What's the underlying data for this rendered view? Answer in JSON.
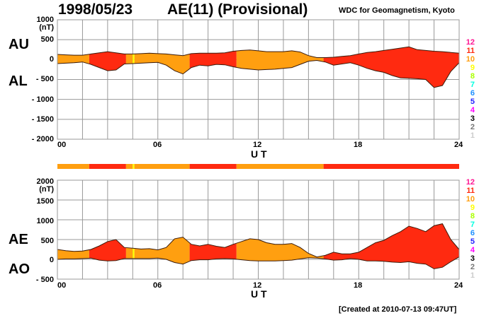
{
  "header": {
    "date": "1998/05/23",
    "title": "AE(11) (Provisional)",
    "source": "WDC for Geomagnetism, Kyoto"
  },
  "footer": {
    "created": "[Created at 2010-07-13 09:47UT]"
  },
  "colors": {
    "level10": "#ff9f10",
    "level11": "#ff2a10",
    "level9": "#ffff00",
    "outline": "#000000",
    "grid": "#999999"
  },
  "legend": {
    "items": [
      {
        "label": "12",
        "color": "#ff1493"
      },
      {
        "label": "11",
        "color": "#ff2a10"
      },
      {
        "label": "10",
        "color": "#ff9f10"
      },
      {
        "label": "9",
        "color": "#ffff00"
      },
      {
        "label": "8",
        "color": "#aaff00"
      },
      {
        "label": "7",
        "color": "#00ffe0"
      },
      {
        "label": "6",
        "color": "#1e90ff"
      },
      {
        "label": "5",
        "color": "#2020ff"
      },
      {
        "label": "4",
        "color": "#ff00ff"
      },
      {
        "label": "3",
        "color": "#000000"
      },
      {
        "label": "2",
        "color": "#777777"
      },
      {
        "label": "1",
        "color": "#cccccc"
      }
    ]
  },
  "chart_data": [
    {
      "type": "area",
      "title": "AU / AL",
      "upper_label": "AU",
      "lower_label": "AL",
      "unit": "(nT)",
      "xlabel": "U T",
      "xlim": [
        0,
        24
      ],
      "ylim": [
        -2000,
        1000
      ],
      "x_ticks": [
        "00",
        "06",
        "12",
        "18",
        "24"
      ],
      "y_ticks": [
        "1000",
        "500",
        "0",
        "- 500",
        "- 1000",
        "- 1500",
        "- 2000"
      ],
      "grid": true,
      "x": [
        0,
        0.5,
        1,
        1.5,
        2,
        2.5,
        3,
        3.5,
        4,
        4.5,
        5,
        5.5,
        6,
        6.5,
        7,
        7.5,
        8,
        8.5,
        9,
        9.5,
        10,
        10.5,
        11,
        11.5,
        12,
        12.5,
        13,
        13.5,
        14,
        14.5,
        15,
        15.5,
        16,
        16.5,
        17,
        17.5,
        18,
        18.5,
        19,
        19.5,
        20,
        20.5,
        21,
        21.5,
        22,
        22.5,
        23,
        23.5,
        24
      ],
      "series": [
        {
          "name": "AU",
          "values": [
            130,
            120,
            110,
            110,
            140,
            170,
            200,
            170,
            140,
            140,
            150,
            160,
            150,
            140,
            120,
            100,
            150,
            160,
            160,
            160,
            170,
            210,
            230,
            240,
            220,
            200,
            200,
            200,
            220,
            190,
            100,
            50,
            50,
            60,
            80,
            100,
            140,
            180,
            200,
            230,
            260,
            290,
            320,
            250,
            230,
            210,
            200,
            180,
            160
          ]
        },
        {
          "name": "AL",
          "values": [
            -100,
            -90,
            -80,
            -60,
            -120,
            -200,
            -280,
            -260,
            -110,
            -100,
            -90,
            -80,
            -70,
            -140,
            -280,
            -360,
            -200,
            -140,
            -160,
            -120,
            -130,
            -180,
            -220,
            -240,
            -260,
            -250,
            -240,
            -220,
            -200,
            -120,
            -40,
            -20,
            -60,
            -140,
            -110,
            -80,
            -140,
            -220,
            -280,
            -320,
            -400,
            -460,
            -470,
            -480,
            -500,
            -700,
            -650,
            -300,
            -80
          ]
        }
      ],
      "activity_segments": [
        {
          "from": 0,
          "to": 1.9,
          "level": 10
        },
        {
          "from": 1.9,
          "to": 4.1,
          "level": 11
        },
        {
          "from": 4.1,
          "to": 4.5,
          "level": 10
        },
        {
          "from": 4.5,
          "to": 4.6,
          "level": 9
        },
        {
          "from": 4.6,
          "to": 7.9,
          "level": 10
        },
        {
          "from": 7.9,
          "to": 10.7,
          "level": 11
        },
        {
          "from": 10.7,
          "to": 15.9,
          "level": 10
        },
        {
          "from": 15.9,
          "to": 24,
          "level": 11
        }
      ]
    },
    {
      "type": "area",
      "title": "AE / AO",
      "upper_label": "AE",
      "lower_label": "AO",
      "unit": "(nT)",
      "xlabel": "U T",
      "xlim": [
        0,
        24
      ],
      "ylim": [
        -500,
        2000
      ],
      "x_ticks": [
        "00",
        "06",
        "12",
        "18",
        "24"
      ],
      "y_ticks": [
        "2000",
        "1500",
        "1000",
        "500",
        "0",
        "- 500"
      ],
      "grid": true,
      "x": [
        0,
        0.5,
        1,
        1.5,
        2,
        2.5,
        3,
        3.5,
        4,
        4.5,
        5,
        5.5,
        6,
        6.5,
        7,
        7.5,
        8,
        8.5,
        9,
        9.5,
        10,
        10.5,
        11,
        11.5,
        12,
        12.5,
        13,
        13.5,
        14,
        14.5,
        15,
        15.5,
        16,
        16.5,
        17,
        17.5,
        18,
        18.5,
        19,
        19.5,
        20,
        20.5,
        21,
        21.5,
        22,
        22.5,
        23,
        23.5,
        24
      ],
      "series": [
        {
          "name": "AE",
          "values": [
            250,
            220,
            200,
            210,
            250,
            340,
            450,
            500,
            300,
            280,
            260,
            270,
            240,
            300,
            520,
            560,
            380,
            340,
            380,
            330,
            300,
            380,
            450,
            520,
            500,
            420,
            380,
            380,
            400,
            300,
            150,
            60,
            100,
            180,
            140,
            140,
            180,
            300,
            420,
            480,
            600,
            700,
            840,
            780,
            700,
            850,
            900,
            500,
            250
          ]
        },
        {
          "name": "AO",
          "values": [
            0,
            10,
            10,
            20,
            30,
            -20,
            -40,
            -30,
            20,
            20,
            20,
            20,
            30,
            0,
            -80,
            -120,
            -30,
            -10,
            -10,
            10,
            20,
            10,
            -10,
            -30,
            -40,
            -40,
            -40,
            -30,
            -20,
            10,
            40,
            30,
            10,
            -20,
            -10,
            20,
            0,
            -40,
            -40,
            -50,
            -70,
            -80,
            -60,
            -100,
            -120,
            -240,
            -200,
            -60,
            60
          ]
        }
      ],
      "activity_segments": [
        {
          "from": 0,
          "to": 1.9,
          "level": 10
        },
        {
          "from": 1.9,
          "to": 4.1,
          "level": 11
        },
        {
          "from": 4.1,
          "to": 4.5,
          "level": 10
        },
        {
          "from": 4.5,
          "to": 4.6,
          "level": 9
        },
        {
          "from": 4.6,
          "to": 7.9,
          "level": 10
        },
        {
          "from": 7.9,
          "to": 10.7,
          "level": 11
        },
        {
          "from": 10.7,
          "to": 15.9,
          "level": 10
        },
        {
          "from": 15.9,
          "to": 24,
          "level": 11
        }
      ]
    }
  ]
}
